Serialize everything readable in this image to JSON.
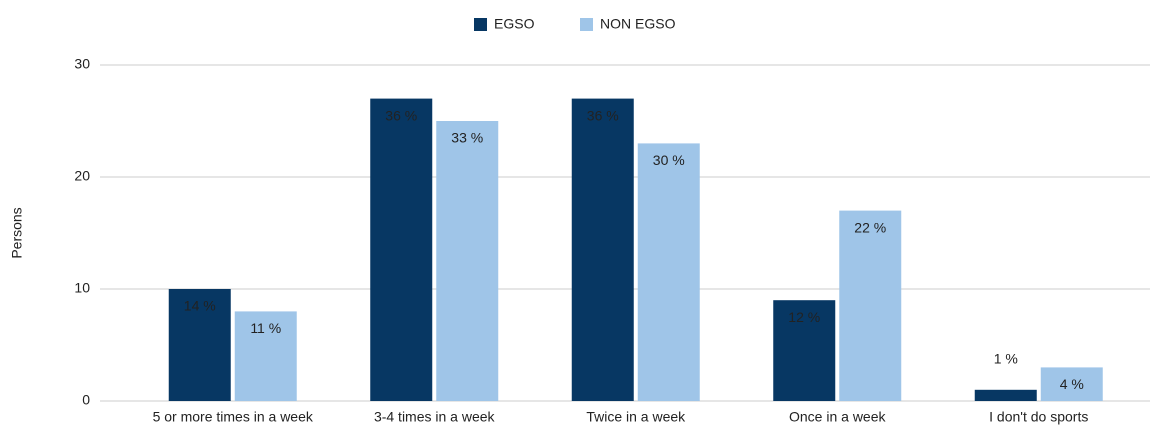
{
  "chart_data": {
    "type": "bar",
    "y_label": "Persons",
    "categories": [
      "5 or more times in a week",
      "3-4 times in a week",
      "Twice in a week",
      "Once in a week",
      "I don't do sports"
    ],
    "series": [
      {
        "name": "EGSO",
        "color": "#073763",
        "values": [
          10,
          27,
          27,
          9,
          1
        ],
        "labels": [
          "14 %",
          "36 %",
          "36 %",
          "12 %",
          "1 %"
        ]
      },
      {
        "name": "NON EGSO",
        "color": "#9fc5e8",
        "values": [
          8,
          25,
          23,
          17,
          3
        ],
        "labels": [
          "11 %",
          "33 %",
          "30 %",
          "22 %",
          "4 %"
        ]
      }
    ],
    "ylim": [
      0,
      30
    ],
    "yticks": [
      0,
      10,
      20,
      30
    ],
    "grid": true,
    "legend": "top"
  }
}
